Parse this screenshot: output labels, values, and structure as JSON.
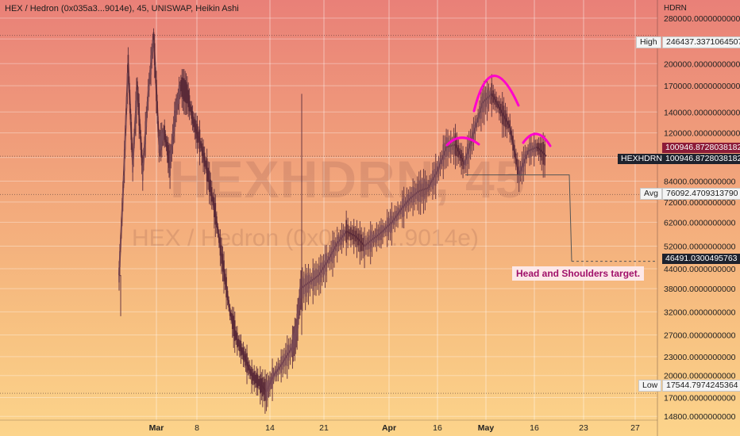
{
  "header": {
    "title": "HEX / Hedron (0x035a3...9014e), 45, UNISWAP, Heikin Ashi",
    "watermark_symbol": "HEXHDRN, 45",
    "watermark_name": "HEX / Hedron (0x035a3...9014e)"
  },
  "axis": {
    "unit_label": "HDRN"
  },
  "labels": {
    "high_tag": "High",
    "high_value": "246437.3371064507",
    "avg_tag": "Avg",
    "avg_value": "76092.4709313790",
    "low_tag": "Low",
    "low_value": "17544.7974245364",
    "symbol_tag": "HEXHDRN",
    "last_value": "100946.8728038182",
    "prev_value": "100946.8728038182",
    "target_value": "46491.0300495763",
    "annotation": "Head and Shoulders target."
  },
  "colors": {
    "up": "#26a69a",
    "down": "#ef5350",
    "candle_body": "#6b3a44",
    "pattern_arcs": "#ff00cc",
    "target_line": "#555555"
  },
  "chart_data": {
    "type": "line",
    "title": "HEX / Hedron (0x035a3...9014e), 45, UNISWAP, Heikin Ashi",
    "xlabel": "",
    "ylabel": "HDRN",
    "y_scale": "log",
    "ylim": [
      12800,
      320000
    ],
    "x_tick_labels": [
      "Mar",
      "8",
      "14",
      "21",
      "Apr",
      "16",
      "May",
      "16",
      "23",
      "27"
    ],
    "y_tick_labels": [
      "280000.0000000000",
      "240000.0000000000",
      "200000.0000000000",
      "170000.0000000000",
      "140000.0000000000",
      "120000.0000000000",
      "100000.0000000000",
      "84000.0000000000",
      "72000.0000000000",
      "62000.0000000000",
      "52000.0000000000",
      "44000.0000000000",
      "38000.0000000000",
      "32000.0000000000",
      "27000.0000000000",
      "23000.0000000000",
      "20000.0000000000",
      "17000.0000000000",
      "14800.0000000000"
    ],
    "y_ticks": [
      280000,
      240000,
      200000,
      170000,
      140000,
      120000,
      100000,
      84000,
      72000,
      62000,
      52000,
      44000,
      38000,
      32000,
      27000,
      23000,
      20000,
      17000,
      14800
    ],
    "series": [
      {
        "values": [
          [
            0,
            42000
          ],
          [
            0.5,
            85000
          ],
          [
            1,
            200000
          ],
          [
            1.5,
            95000
          ],
          [
            2,
            170000
          ],
          [
            2.6,
            90000
          ],
          [
            3.2,
            160000
          ],
          [
            3.8,
            245000
          ],
          [
            4.4,
            110000
          ],
          [
            5,
            120000
          ],
          [
            5.6,
            95000
          ],
          [
            6.2,
            140000
          ],
          [
            6.8,
            170000
          ],
          [
            7.5,
            160000
          ],
          [
            8.2,
            130000
          ],
          [
            9,
            110000
          ],
          [
            9.8,
            88000
          ],
          [
            10.6,
            66000
          ],
          [
            11.4,
            46000
          ],
          [
            12.2,
            32000
          ],
          [
            13,
            26000
          ],
          [
            13.8,
            23000
          ],
          [
            14.6,
            20000
          ],
          [
            15.4,
            19000
          ],
          [
            16.2,
            17800
          ],
          [
            17,
            20000
          ],
          [
            18,
            22000
          ],
          [
            19,
            24500
          ],
          [
            19.5,
            27500
          ],
          [
            20,
            38000
          ],
          [
            21,
            40000
          ],
          [
            22,
            42000
          ],
          [
            23,
            47000
          ],
          [
            24,
            53000
          ],
          [
            25,
            58000
          ],
          [
            26,
            56000
          ],
          [
            27,
            52000
          ],
          [
            28,
            55000
          ],
          [
            29,
            58000
          ],
          [
            30,
            62000
          ],
          [
            31,
            68000
          ],
          [
            32,
            74000
          ],
          [
            33,
            78000
          ],
          [
            34,
            80000
          ],
          [
            35,
            90000
          ],
          [
            36,
            108000
          ],
          [
            37,
            110000
          ],
          [
            38,
            95000
          ],
          [
            39,
            120000
          ],
          [
            40,
            150000
          ],
          [
            41,
            160000
          ],
          [
            42,
            142000
          ],
          [
            43,
            125000
          ],
          [
            44,
            88000
          ],
          [
            45,
            105000
          ],
          [
            46,
            108000
          ],
          [
            47,
            100946
          ]
        ]
      }
    ],
    "annotations": [
      {
        "text": "Head and Shoulders target.",
        "value": 46491.0300495763
      },
      {
        "text": "High",
        "value": 246437.3371064507
      },
      {
        "text": "Avg",
        "value": 76092.470931379
      },
      {
        "text": "Low",
        "value": 17544.7974245364
      }
    ],
    "pattern": {
      "name": "head and shoulders",
      "neckline": 88000,
      "target": 46491.0300495763
    }
  }
}
